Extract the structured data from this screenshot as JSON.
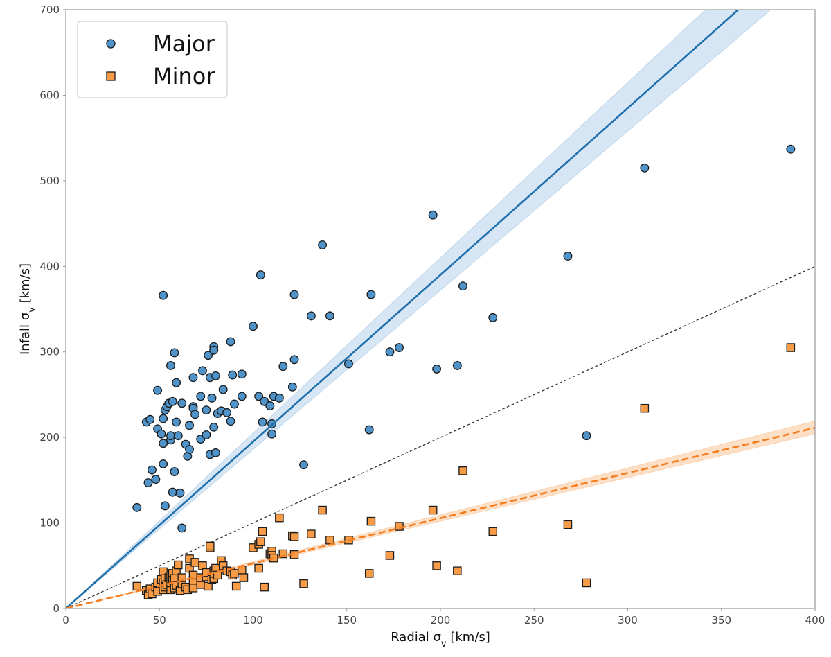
{
  "chart_data": {
    "type": "scatter",
    "xlabel": "Radial σ",
    "xlabel_sub": "v",
    "xlabel_unit": " [km/s]",
    "ylabel": "Infall σ",
    "ylabel_sub": "v",
    "ylabel_unit": " [km/s]",
    "xlim": [
      0,
      400
    ],
    "ylim": [
      0,
      700
    ],
    "xticks": [
      0,
      50,
      100,
      150,
      200,
      250,
      300,
      350,
      400
    ],
    "yticks": [
      0,
      100,
      200,
      300,
      400,
      500,
      600,
      700
    ],
    "grid": false,
    "legend_position": "top-left",
    "series": [
      {
        "name": "Major",
        "marker": "circle",
        "color": "#4f93c9",
        "points": [
          [
            38,
            118
          ],
          [
            43,
            218
          ],
          [
            44,
            147
          ],
          [
            45,
            221
          ],
          [
            46,
            162
          ],
          [
            48,
            151
          ],
          [
            49,
            255
          ],
          [
            49,
            210
          ],
          [
            51,
            204
          ],
          [
            52,
            222
          ],
          [
            52,
            193
          ],
          [
            52,
            169
          ],
          [
            52,
            366
          ],
          [
            53,
            232
          ],
          [
            53,
            120
          ],
          [
            54,
            236
          ],
          [
            55,
            240
          ],
          [
            56,
            197
          ],
          [
            56,
            284
          ],
          [
            56,
            202
          ],
          [
            57,
            242
          ],
          [
            57,
            136
          ],
          [
            58,
            160
          ],
          [
            58,
            299
          ],
          [
            59,
            264
          ],
          [
            59,
            218
          ],
          [
            60,
            202
          ],
          [
            61,
            135
          ],
          [
            62,
            240
          ],
          [
            62,
            94
          ],
          [
            64,
            192
          ],
          [
            65,
            178
          ],
          [
            66,
            186
          ],
          [
            66,
            214
          ],
          [
            68,
            236
          ],
          [
            68,
            270
          ],
          [
            68,
            234
          ],
          [
            69,
            227
          ],
          [
            72,
            198
          ],
          [
            72,
            248
          ],
          [
            73,
            278
          ],
          [
            75,
            203
          ],
          [
            75,
            232
          ],
          [
            76,
            296
          ],
          [
            77,
            180
          ],
          [
            77,
            270
          ],
          [
            78,
            246
          ],
          [
            79,
            212
          ],
          [
            79,
            306
          ],
          [
            79,
            302
          ],
          [
            80,
            182
          ],
          [
            80,
            272
          ],
          [
            81,
            228
          ],
          [
            83,
            231
          ],
          [
            84,
            256
          ],
          [
            86,
            229
          ],
          [
            88,
            312
          ],
          [
            88,
            219
          ],
          [
            89,
            273
          ],
          [
            90,
            239
          ],
          [
            94,
            274
          ],
          [
            94,
            248
          ],
          [
            100,
            330
          ],
          [
            103,
            248
          ],
          [
            104,
            390
          ],
          [
            105,
            218
          ],
          [
            106,
            242
          ],
          [
            109,
            237
          ],
          [
            110,
            204
          ],
          [
            110,
            216
          ],
          [
            111,
            248
          ],
          [
            114,
            246
          ],
          [
            116,
            283
          ],
          [
            121,
            259
          ],
          [
            122,
            291
          ],
          [
            122,
            367
          ],
          [
            127,
            168
          ],
          [
            131,
            342
          ],
          [
            137,
            425
          ],
          [
            141,
            342
          ],
          [
            151,
            286
          ],
          [
            162,
            209
          ],
          [
            163,
            367
          ],
          [
            173,
            300
          ],
          [
            178,
            305
          ],
          [
            196,
            460
          ],
          [
            198,
            280
          ],
          [
            209,
            284
          ],
          [
            212,
            377
          ],
          [
            228,
            340
          ],
          [
            268,
            412
          ],
          [
            278,
            202
          ],
          [
            309,
            515
          ],
          [
            387,
            537
          ]
        ]
      },
      {
        "name": "Minor",
        "marker": "square",
        "color": "#f89b46",
        "points": [
          [
            38,
            26
          ],
          [
            43,
            21
          ],
          [
            44,
            16
          ],
          [
            45,
            23
          ],
          [
            46,
            17
          ],
          [
            48,
            25
          ],
          [
            49,
            30
          ],
          [
            49,
            20
          ],
          [
            51,
            34
          ],
          [
            52,
            30
          ],
          [
            52,
            22
          ],
          [
            52,
            43
          ],
          [
            53,
            35
          ],
          [
            53,
            25
          ],
          [
            54,
            28
          ],
          [
            55,
            36
          ],
          [
            56,
            22
          ],
          [
            56,
            38
          ],
          [
            56,
            30
          ],
          [
            57,
            41
          ],
          [
            57,
            33
          ],
          [
            58,
            24
          ],
          [
            58,
            35
          ],
          [
            59,
            44
          ],
          [
            59,
            27
          ],
          [
            60,
            51
          ],
          [
            61,
            21
          ],
          [
            62,
            29
          ],
          [
            62,
            36
          ],
          [
            64,
            25
          ],
          [
            65,
            22
          ],
          [
            66,
            58
          ],
          [
            66,
            47
          ],
          [
            68,
            24
          ],
          [
            68,
            33
          ],
          [
            68,
            39
          ],
          [
            69,
            54
          ],
          [
            72,
            28
          ],
          [
            72,
            36
          ],
          [
            73,
            50
          ],
          [
            75,
            37
          ],
          [
            75,
            42
          ],
          [
            76,
            26
          ],
          [
            77,
            71
          ],
          [
            77,
            73
          ],
          [
            78,
            34
          ],
          [
            79,
            44
          ],
          [
            79,
            35
          ],
          [
            79,
            41
          ],
          [
            80,
            47
          ],
          [
            81,
            39
          ],
          [
            83,
            56
          ],
          [
            84,
            50
          ],
          [
            86,
            44
          ],
          [
            88,
            43
          ],
          [
            89,
            39
          ],
          [
            90,
            41
          ],
          [
            91,
            26
          ],
          [
            94,
            45
          ],
          [
            95,
            36
          ],
          [
            100,
            71
          ],
          [
            103,
            75
          ],
          [
            103,
            47
          ],
          [
            104,
            78
          ],
          [
            105,
            90
          ],
          [
            106,
            25
          ],
          [
            109,
            64
          ],
          [
            110,
            67
          ],
          [
            110,
            62
          ],
          [
            111,
            59
          ],
          [
            114,
            106
          ],
          [
            116,
            64
          ],
          [
            121,
            85
          ],
          [
            122,
            84
          ],
          [
            122,
            63
          ],
          [
            127,
            29
          ],
          [
            131,
            87
          ],
          [
            137,
            115
          ],
          [
            141,
            80
          ],
          [
            151,
            80
          ],
          [
            162,
            41
          ],
          [
            163,
            102
          ],
          [
            173,
            62
          ],
          [
            178,
            96
          ],
          [
            196,
            115
          ],
          [
            198,
            50
          ],
          [
            209,
            44
          ],
          [
            212,
            161
          ],
          [
            228,
            90
          ],
          [
            268,
            98
          ],
          [
            278,
            30
          ],
          [
            309,
            234
          ],
          [
            387,
            305
          ]
        ]
      }
    ],
    "fit_lines": [
      {
        "name": "Major fit",
        "color": "#1f6fad",
        "band_color": "#c6dcef",
        "style": "solid",
        "slope": 1.95,
        "band_low": 1.86,
        "band_high": 2.05
      },
      {
        "name": "Minor fit",
        "color": "#f47d20",
        "band_color": "#fbd1ad",
        "style": "dashed",
        "slope": 0.528,
        "band_low": 0.51,
        "band_high": 0.548
      },
      {
        "name": "1:1 line",
        "color": "#333333",
        "style": "dotted-dashed",
        "slope": 1.0
      }
    ]
  }
}
